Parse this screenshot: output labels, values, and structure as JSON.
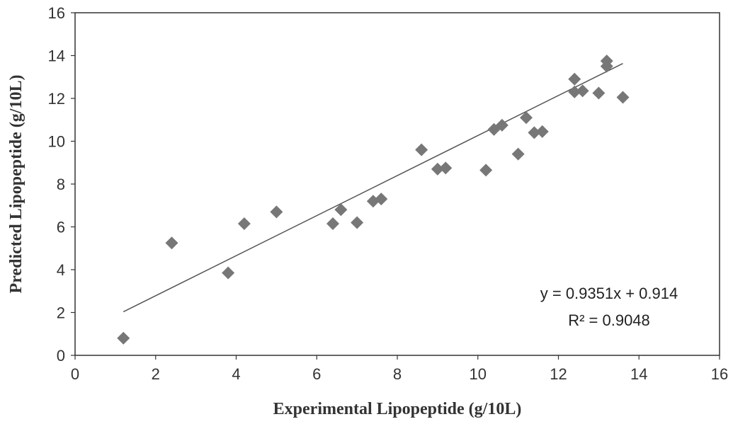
{
  "chart_data": {
    "type": "scatter",
    "title": "",
    "xlabel": "Experimental Lipopeptide (g/10L)",
    "ylabel": "Predicted Lipopeptide (g/10L)",
    "xlim": [
      0,
      16
    ],
    "ylim": [
      0,
      16
    ],
    "xticks": [
      0,
      2,
      4,
      6,
      8,
      10,
      12,
      14,
      16
    ],
    "yticks": [
      0,
      2,
      4,
      6,
      8,
      10,
      12,
      14,
      16
    ],
    "grid": false,
    "legend": "none",
    "marker_color": "#777777",
    "points": [
      {
        "x": 1.2,
        "y": 0.8
      },
      {
        "x": 2.4,
        "y": 5.25
      },
      {
        "x": 3.8,
        "y": 3.85
      },
      {
        "x": 4.2,
        "y": 6.15
      },
      {
        "x": 5.0,
        "y": 6.7
      },
      {
        "x": 6.4,
        "y": 6.15
      },
      {
        "x": 6.6,
        "y": 6.8
      },
      {
        "x": 7.0,
        "y": 6.2
      },
      {
        "x": 7.4,
        "y": 7.2
      },
      {
        "x": 7.6,
        "y": 7.3
      },
      {
        "x": 8.6,
        "y": 9.6
      },
      {
        "x": 9.0,
        "y": 8.7
      },
      {
        "x": 9.2,
        "y": 8.75
      },
      {
        "x": 10.2,
        "y": 8.65
      },
      {
        "x": 10.4,
        "y": 10.55
      },
      {
        "x": 10.6,
        "y": 10.75
      },
      {
        "x": 11.0,
        "y": 9.4
      },
      {
        "x": 11.2,
        "y": 11.1
      },
      {
        "x": 11.4,
        "y": 10.4
      },
      {
        "x": 11.6,
        "y": 10.45
      },
      {
        "x": 12.4,
        "y": 12.9
      },
      {
        "x": 12.4,
        "y": 12.3
      },
      {
        "x": 12.6,
        "y": 12.35
      },
      {
        "x": 13.0,
        "y": 12.25
      },
      {
        "x": 13.2,
        "y": 13.75
      },
      {
        "x": 13.2,
        "y": 13.5
      },
      {
        "x": 13.6,
        "y": 12.05
      }
    ],
    "trendline": {
      "slope": 0.9351,
      "intercept": 0.914,
      "x_range": [
        1.2,
        13.6
      ],
      "equation_label": "y = 0.9351x + 0.914",
      "r2_label": "R² = 0.9048"
    }
  }
}
